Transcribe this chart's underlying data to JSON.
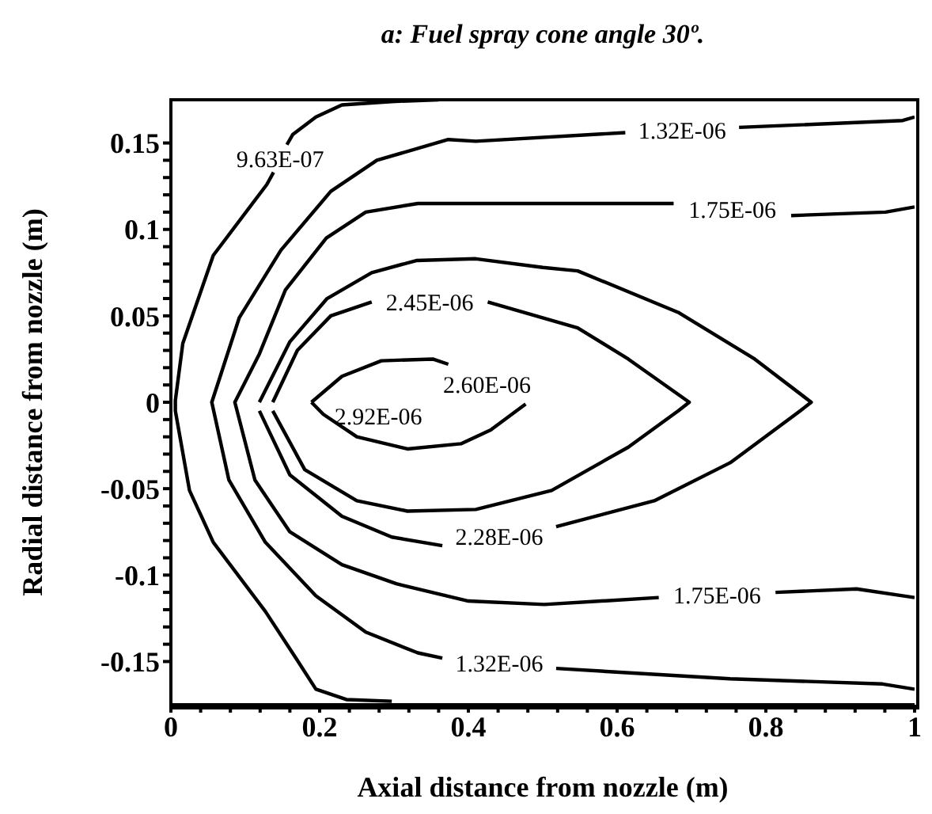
{
  "chart_data": {
    "type": "line",
    "title": "a: Fuel spray cone angle 30º.",
    "xlabel": "Axial distance from nozzle (m)",
    "ylabel": "Radial distance from nozzle (m)",
    "xlim": [
      0,
      1
    ],
    "ylim": [
      -0.175,
      0.175
    ],
    "xticks": [
      0,
      {
        "value": 0.04,
        "label": null
      },
      {
        "value": 0.08,
        "label": null
      },
      {
        "value": 0.12,
        "label": null
      },
      {
        "value": 0.16,
        "label": null
      },
      0.2,
      {
        "value": 0.24,
        "label": null
      },
      {
        "value": 0.28,
        "label": null
      },
      {
        "value": 0.32,
        "label": null
      },
      {
        "value": 0.36,
        "label": null
      },
      0.4,
      {
        "value": 0.44,
        "label": null
      },
      {
        "value": 0.48,
        "label": null
      },
      {
        "value": 0.52,
        "label": null
      },
      {
        "value": 0.56,
        "label": null
      },
      0.6,
      {
        "value": 0.64,
        "label": null
      },
      {
        "value": 0.68,
        "label": null
      },
      {
        "value": 0.72,
        "label": null
      },
      {
        "value": 0.76,
        "label": null
      },
      0.8,
      {
        "value": 0.84,
        "label": null
      },
      {
        "value": 0.88,
        "label": null
      },
      {
        "value": 0.92,
        "label": null
      },
      {
        "value": 0.96,
        "label": null
      },
      1
    ],
    "yticks": [
      -0.15,
      {
        "value": -0.14,
        "label": null
      },
      {
        "value": -0.13,
        "label": null
      },
      {
        "value": -0.12,
        "label": null
      },
      {
        "value": -0.11,
        "label": null
      },
      -0.1,
      {
        "value": -0.09,
        "label": null
      },
      {
        "value": -0.08,
        "label": null
      },
      {
        "value": -0.07,
        "label": null
      },
      {
        "value": -0.06,
        "label": null
      },
      -0.05,
      {
        "value": -0.04,
        "label": null
      },
      {
        "value": -0.03,
        "label": null
      },
      {
        "value": -0.02,
        "label": null
      },
      {
        "value": -0.01,
        "label": null
      },
      0,
      {
        "value": 0.01,
        "label": null
      },
      {
        "value": 0.02,
        "label": null
      },
      {
        "value": 0.03,
        "label": null
      },
      {
        "value": 0.04,
        "label": null
      },
      0.05,
      {
        "value": 0.06,
        "label": null
      },
      {
        "value": 0.07,
        "label": null
      },
      {
        "value": 0.08,
        "label": null
      },
      {
        "value": 0.09,
        "label": null
      },
      0.1,
      {
        "value": 0.11,
        "label": null
      },
      {
        "value": 0.12,
        "label": null
      },
      {
        "value": 0.13,
        "label": null
      },
      {
        "value": 0.14,
        "label": null
      },
      0.15
    ],
    "series": [
      {
        "name": "9.63E-07",
        "color": "#000000",
        "x": [
          0.36,
          0.297,
          0.23,
          0.195,
          0.164,
          0.156,
          0.147,
          0.138,
          0.129,
          0.057,
          0.016,
          0.006,
          0.006,
          0.025,
          0.057,
          0.127,
          0.168,
          0.195,
          0.236,
          0.297
        ],
        "values": [
          0.175,
          0.174,
          0.172,
          0.165,
          0.155,
          0.149,
          null,
          0.133,
          0.126,
          0.085,
          0.034,
          0.001,
          -0.005,
          -0.051,
          -0.081,
          -0.121,
          -0.148,
          -0.166,
          -0.172,
          -0.173
        ]
      },
      {
        "name": "1.32E-06",
        "color": "#000000",
        "x": [
          1,
          0.984,
          0.764,
          0.686,
          0.611,
          0.41,
          0.373,
          0.277,
          0.215,
          0.148,
          0.092,
          0.055,
          0.078,
          0.127,
          0.195,
          0.262,
          0.332,
          0.365,
          0.44,
          0.518,
          0.752,
          0.957,
          1
        ],
        "values": [
          0.165,
          0.163,
          0.159,
          null,
          0.156,
          0.151,
          0.152,
          0.14,
          0.122,
          0.088,
          0.049,
          0,
          -0.045,
          -0.081,
          -0.112,
          -0.133,
          -0.145,
          -0.148,
          null,
          -0.154,
          -0.16,
          -0.163,
          -0.166
        ]
      },
      {
        "name": "1.75E-06",
        "color": "#000000",
        "x": [
          1,
          0.961,
          0.834,
          0.752,
          0.676,
          0.502,
          0.332,
          0.262,
          0.209,
          0.154,
          0.119,
          0.086,
          0.113,
          0.16,
          0.23,
          0.303,
          0.4,
          0.502,
          0.656,
          0.738,
          0.813,
          0.922,
          1
        ],
        "values": [
          0.113,
          0.11,
          0.108,
          null,
          0.115,
          0.115,
          0.115,
          0.11,
          0.095,
          0.065,
          0.028,
          0,
          -0.045,
          -0.075,
          -0.094,
          -0.105,
          -0.115,
          -0.117,
          -0.113,
          null,
          -0.11,
          -0.108,
          -0.113
        ]
      },
      {
        "name": "2.28E-06",
        "color": "#000000",
        "x": [
          0.119,
          0.16,
          0.21,
          0.27,
          0.33,
          0.41,
          0.5,
          0.547,
          0.682,
          0.785,
          0.861,
          0.846,
          0.752,
          0.65,
          0.518,
          0.441,
          0.365,
          0.297,
          0.23,
          0.16,
          0.119
        ],
        "values": [
          0,
          0.035,
          0.06,
          0.075,
          0.082,
          0.083,
          0.078,
          0.076,
          0.052,
          0.025,
          0,
          -0.005,
          -0.035,
          -0.057,
          -0.072,
          null,
          -0.083,
          -0.078,
          -0.066,
          -0.042,
          -0.005
        ]
      },
      {
        "name": "2.45E-06",
        "color": "#000000",
        "x": [
          0.137,
          0.17,
          0.215,
          0.27,
          0.346,
          0.426,
          0.547,
          0.615,
          0.697,
          0.682,
          0.615,
          0.512,
          0.41,
          0.318,
          0.25,
          0.18,
          0.137
        ],
        "values": [
          0,
          0.03,
          0.05,
          0.058,
          null,
          0.058,
          0.043,
          0.025,
          0,
          -0.005,
          -0.026,
          -0.051,
          -0.062,
          -0.063,
          -0.057,
          -0.039,
          -0.005
        ]
      },
      {
        "name": "2.60E-06",
        "color": "#000000",
        "x": [
          0.189,
          0.23,
          0.283,
          0.352,
          0.373,
          0.43,
          0.477,
          0.43,
          0.39,
          0.318,
          0.25,
          0.205,
          0.189
        ],
        "values": [
          0,
          0.015,
          0.024,
          0.025,
          0.022,
          null,
          -0.001,
          -0.016,
          -0.024,
          -0.027,
          -0.02,
          -0.007,
          0
        ]
      }
    ],
    "annotations": [
      "2.92E-06"
    ]
  }
}
